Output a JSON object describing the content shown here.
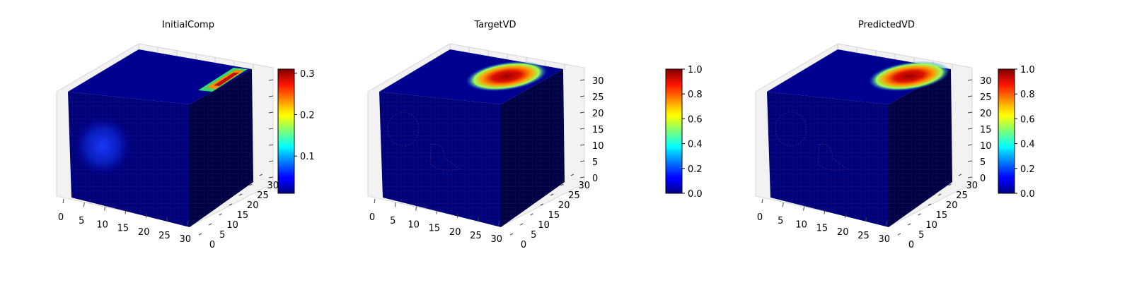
{
  "chart_data": [
    {
      "type": "heatmap",
      "subtype": "3d-voxel-cube",
      "title": "InitialComp",
      "xticks": [
        "0",
        "5",
        "10",
        "15",
        "20",
        "25",
        "30"
      ],
      "yticks": [
        "0",
        "5",
        "10",
        "15",
        "20",
        "25",
        "30"
      ],
      "zticks": [],
      "xlim": [
        0,
        32
      ],
      "ylim": [
        0,
        32
      ],
      "zlim": [
        0,
        32
      ],
      "colorbar": {
        "ticks": [
          "0.1",
          "0.2",
          "0.3"
        ],
        "range": [
          0.01,
          0.31
        ],
        "colormap": "jet"
      },
      "notes": [
        "low-intensity blob on front face",
        "hotspot near back-right of top face"
      ]
    },
    {
      "type": "heatmap",
      "subtype": "3d-voxel-cube",
      "title": "TargetVD",
      "xticks": [
        "0",
        "5",
        "10",
        "15",
        "20",
        "25",
        "30"
      ],
      "yticks": [
        "0",
        "5",
        "10",
        "15",
        "20",
        "25",
        "30"
      ],
      "zticks": [
        "0",
        "5",
        "10",
        "15",
        "20",
        "25",
        "30"
      ],
      "xlim": [
        0,
        32
      ],
      "ylim": [
        0,
        32
      ],
      "zlim": [
        0,
        32
      ],
      "colorbar": {
        "ticks": [
          "0.0",
          "0.2",
          "0.4",
          "0.6",
          "0.8",
          "1.0"
        ],
        "range": [
          0.0,
          1.0
        ],
        "colormap": "jet"
      },
      "notes": [
        "high-value region near back of top face"
      ]
    },
    {
      "type": "heatmap",
      "subtype": "3d-voxel-cube",
      "title": "PredictedVD",
      "xticks": [
        "0",
        "5",
        "10",
        "15",
        "20",
        "25",
        "30"
      ],
      "yticks": [
        "0",
        "5",
        "10",
        "15",
        "20",
        "25",
        "30"
      ],
      "zticks": [
        "0",
        "5",
        "10",
        "15",
        "20",
        "25",
        "30"
      ],
      "xlim": [
        0,
        32
      ],
      "ylim": [
        0,
        32
      ],
      "zlim": [
        0,
        32
      ],
      "colorbar": {
        "ticks": [
          "0.0",
          "0.2",
          "0.4",
          "0.6",
          "0.8",
          "1.0"
        ],
        "range": [
          0.0,
          1.0
        ],
        "colormap": "jet"
      },
      "notes": [
        "high-value region near back of top face"
      ]
    }
  ],
  "colors": {
    "cube_face": "#00007a",
    "cube_side": "#000044",
    "pane": "#f2f2f2"
  }
}
